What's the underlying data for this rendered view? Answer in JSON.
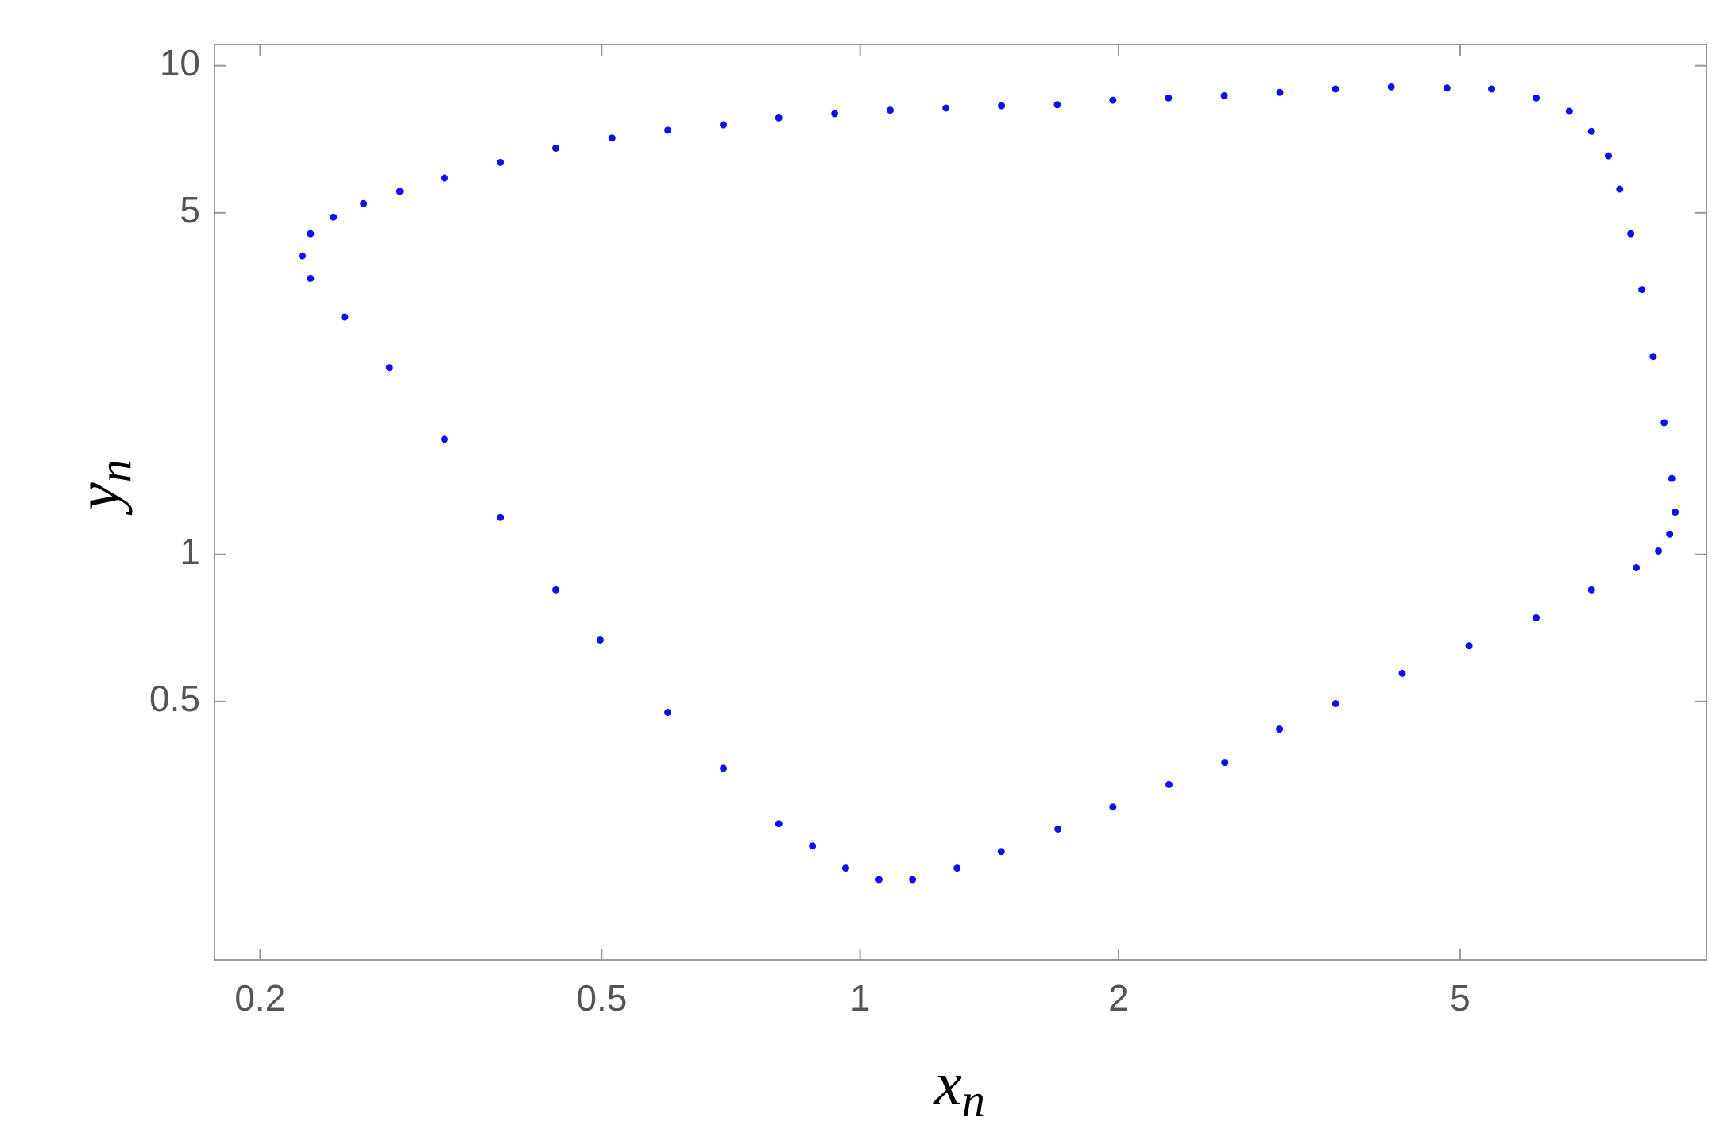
{
  "chart_data": {
    "type": "scatter",
    "x_label": {
      "text": "x",
      "subscript": "n"
    },
    "y_label": {
      "text": "y",
      "subscript": "n"
    },
    "color": "#1010ee",
    "log_x": true,
    "log_y": true,
    "grid": false,
    "xlim": [
      0.177,
      9.68
    ],
    "ylim": [
      0.148,
      11.05
    ],
    "xticks": [
      0.2,
      0.5,
      1,
      2,
      5
    ],
    "yticks": [
      0.5,
      1,
      5,
      10
    ],
    "x": [
      0.224,
      0.229,
      0.2435,
      0.264,
      0.291,
      0.328,
      0.381,
      0.442,
      0.514,
      0.597,
      0.693,
      0.804,
      0.934,
      1.084,
      1.259,
      1.461,
      1.697,
      1.97,
      2.287,
      2.656,
      3.083,
      3.579,
      4.156,
      4.826,
      5.44,
      6.13,
      6.7,
      7.11,
      7.44,
      7.67,
      7.9,
      8.14,
      8.39,
      8.64,
      8.82,
      8.9,
      8.77,
      8.51,
      8.02,
      7.11,
      6.13,
      5.12,
      4.28,
      3.58,
      3.08,
      2.66,
      2.29,
      1.97,
      1.7,
      1.46,
      1.297,
      1.151,
      1.052,
      0.962,
      0.88,
      0.804,
      0.693,
      0.597,
      0.498,
      0.442,
      0.381,
      0.328,
      0.283,
      0.251,
      0.229
    ],
    "y": [
      4.08,
      4.53,
      4.9,
      5.22,
      5.53,
      5.89,
      6.34,
      6.78,
      7.11,
      7.38,
      7.57,
      7.82,
      7.98,
      8.11,
      8.19,
      8.28,
      8.32,
      8.5,
      8.59,
      8.68,
      8.82,
      8.96,
      9.05,
      9.0,
      8.96,
      8.59,
      8.07,
      7.34,
      6.54,
      5.59,
      4.53,
      3.48,
      2.54,
      1.86,
      1.43,
      1.22,
      1.1,
      1.016,
      0.939,
      0.846,
      0.742,
      0.65,
      0.571,
      0.495,
      0.439,
      0.375,
      0.338,
      0.304,
      0.274,
      0.2465,
      0.228,
      0.216,
      0.216,
      0.228,
      0.253,
      0.281,
      0.365,
      0.475,
      0.668,
      0.846,
      1.19,
      1.72,
      2.41,
      3.06,
      3.67
    ]
  }
}
